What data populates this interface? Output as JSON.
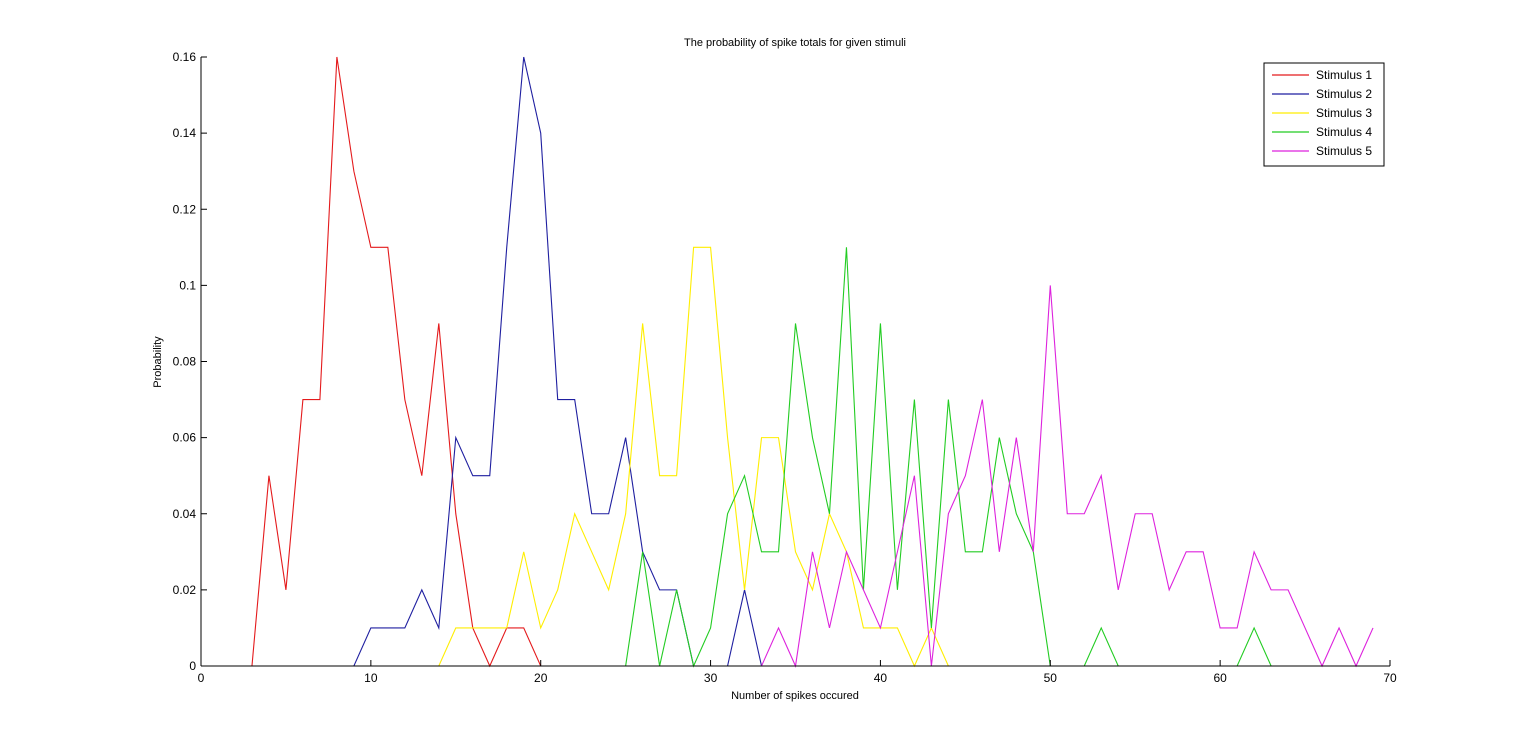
{
  "chart_data": {
    "type": "line",
    "title": "The probability of spike totals for given stimuli",
    "xlabel": "Number of spikes occured",
    "ylabel": "Probability",
    "xlim": [
      0,
      70
    ],
    "ylim": [
      0,
      0.16
    ],
    "xticks": [
      0,
      10,
      20,
      30,
      40,
      50,
      60,
      70
    ],
    "xtick_labels": [
      "0",
      "10",
      "20",
      "30",
      "40",
      "50",
      "60",
      "70"
    ],
    "yticks": [
      0,
      0.02,
      0.04,
      0.06,
      0.08,
      0.1,
      0.12,
      0.14,
      0.16
    ],
    "ytick_labels": [
      "0",
      "0.02",
      "0.04",
      "0.06",
      "0.08",
      "0.1",
      "0.12",
      "0.14",
      "0.16"
    ],
    "grid": false,
    "legend_position": "top-right",
    "x_start": 0,
    "series": [
      {
        "name": "Stimulus 1",
        "color": "#e41a1c",
        "values": [
          0,
          0,
          0,
          0,
          0.05,
          0.02,
          0.07,
          0.07,
          0.16,
          0.13,
          0.11,
          0.11,
          0.07,
          0.05,
          0.09,
          0.04,
          0.01,
          0,
          0.01,
          0.01,
          0,
          0,
          0,
          0,
          0,
          0,
          0,
          0,
          0,
          0,
          0,
          0,
          0,
          0,
          0,
          0,
          0,
          0,
          0,
          0,
          0,
          0,
          0,
          0,
          0,
          0,
          0,
          0,
          0,
          0,
          0,
          0,
          0,
          0,
          0,
          0,
          0,
          0,
          0,
          0,
          0,
          0,
          0,
          0,
          0,
          0,
          0,
          0,
          0,
          0
        ]
      },
      {
        "name": "Stimulus 2",
        "color": "#1f1fa0",
        "values": [
          0,
          0,
          0,
          0,
          0,
          0,
          0,
          0,
          0,
          0,
          0.01,
          0.01,
          0.01,
          0.02,
          0.01,
          0.06,
          0.05,
          0.05,
          0.11,
          0.16,
          0.14,
          0.07,
          0.07,
          0.04,
          0.04,
          0.06,
          0.03,
          0.02,
          0.02,
          0,
          0,
          0,
          0.02,
          0,
          0,
          0,
          0,
          0,
          0,
          0,
          0,
          0,
          0,
          0,
          0,
          0,
          0,
          0,
          0,
          0,
          0,
          0,
          0,
          0,
          0,
          0,
          0,
          0,
          0,
          0,
          0,
          0,
          0,
          0,
          0,
          0,
          0,
          0,
          0,
          0
        ]
      },
      {
        "name": "Stimulus 3",
        "color": "#ffee00",
        "values": [
          0,
          0,
          0,
          0,
          0,
          0,
          0,
          0,
          0,
          0,
          0,
          0,
          0,
          0,
          0,
          0.01,
          0.01,
          0.01,
          0.01,
          0.03,
          0.01,
          0.02,
          0.04,
          0.03,
          0.02,
          0.04,
          0.09,
          0.05,
          0.05,
          0.11,
          0.11,
          0.06,
          0.02,
          0.06,
          0.06,
          0.03,
          0.02,
          0.04,
          0.03,
          0.01,
          0.01,
          0.01,
          0,
          0.01,
          0,
          0,
          0,
          0,
          0,
          0,
          0,
          0,
          0,
          0,
          0,
          0,
          0,
          0,
          0,
          0,
          0,
          0,
          0,
          0,
          0,
          0,
          0,
          0,
          0,
          0
        ]
      },
      {
        "name": "Stimulus 4",
        "color": "#22cc22",
        "values": [
          0,
          0,
          0,
          0,
          0,
          0,
          0,
          0,
          0,
          0,
          0,
          0,
          0,
          0,
          0,
          0,
          0,
          0,
          0,
          0,
          0,
          0,
          0,
          0,
          0,
          0,
          0.03,
          0,
          0.02,
          0,
          0.01,
          0.04,
          0.05,
          0.03,
          0.03,
          0.09,
          0.06,
          0.04,
          0.11,
          0.02,
          0.09,
          0.02,
          0.07,
          0.01,
          0.07,
          0.03,
          0.03,
          0.06,
          0.04,
          0.03,
          0,
          0,
          0,
          0.01,
          0,
          0,
          0,
          0,
          0,
          0,
          0,
          0,
          0.01,
          0,
          0,
          0,
          0,
          0,
          0,
          0
        ]
      },
      {
        "name": "Stimulus 5",
        "color": "#dd22dd",
        "values": [
          0,
          0,
          0,
          0,
          0,
          0,
          0,
          0,
          0,
          0,
          0,
          0,
          0,
          0,
          0,
          0,
          0,
          0,
          0,
          0,
          0,
          0,
          0,
          0,
          0,
          0,
          0,
          0,
          0,
          0,
          0,
          0,
          0,
          0,
          0.01,
          0,
          0.03,
          0.01,
          0.03,
          0.02,
          0.01,
          0.03,
          0.05,
          0,
          0.04,
          0.05,
          0.07,
          0.03,
          0.06,
          0.03,
          0.1,
          0.04,
          0.04,
          0.05,
          0.02,
          0.04,
          0.04,
          0.02,
          0.03,
          0.03,
          0.01,
          0.01,
          0.03,
          0.02,
          0.02,
          0.01,
          0,
          0.01,
          0,
          0.01
        ]
      }
    ]
  }
}
